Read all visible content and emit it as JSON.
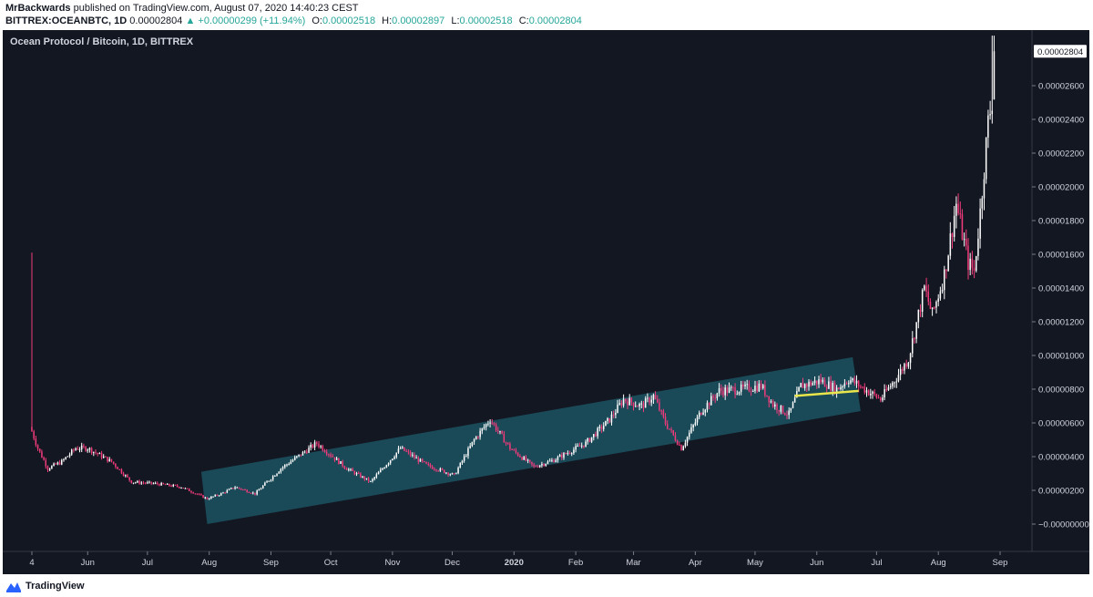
{
  "header": {
    "author": "MrBackwards",
    "published_text": " published on TradingView.com, August 07, 2020 14:40:23 CEST",
    "symbol": "BITTREX:OCEANBTC, 1D",
    "last": "0.00002804",
    "change": "▲ +0.00000299 (+11.94%)",
    "o_label": "O:",
    "o_value": "0.00002518",
    "h_label": "H:",
    "h_value": "0.00002897",
    "l_label": "L:",
    "l_value": "0.00002518",
    "c_label": "C:",
    "c_value": "0.00002804"
  },
  "footer": {
    "brand": "TradingView",
    "logo_icon": "tradingview-logo-icon"
  },
  "colors": {
    "background": "#131722",
    "up": "#ffffff",
    "down": "#f23b7b",
    "channel": "#1e5b6b",
    "support": "#e8e64a",
    "axis_text": "#d1d4dc",
    "last_label_bg": "#ffffff"
  },
  "chart_data": {
    "type": "candlestick",
    "title": "Ocean Protocol / Bitcoin, 1D, BITTREX",
    "x_ticks": [
      "4",
      "Jun",
      "Jul",
      "Aug",
      "Sep",
      "Oct",
      "Nov",
      "Dec",
      "2020",
      "Feb",
      "Mar",
      "Apr",
      "May",
      "Jun",
      "Jul",
      "Aug",
      "Sep"
    ],
    "y_ticks": [
      "0.00002600",
      "0.00002400",
      "0.00002200",
      "0.00002000",
      "0.00001800",
      "0.00001600",
      "0.00001400",
      "0.00001200",
      "0.00001000",
      "0.00000800",
      "0.00000600",
      "0.00000400",
      "0.00000200",
      "−0.00000000"
    ],
    "y_tick_values": [
      2.6e-05,
      2.4e-05,
      2.2e-05,
      2e-05,
      1.8e-05,
      1.6e-05,
      1.4e-05,
      1.2e-05,
      1e-05,
      8e-06,
      6e-06,
      4e-06,
      2e-06,
      0
    ],
    "ylim": [
      -7e-07,
      2.97e-05
    ],
    "last_price_label": "0.00002804",
    "last_price": 2.804e-05,
    "x_range_days": [
      0,
      500
    ],
    "tick_days": [
      0,
      28,
      58,
      89,
      120,
      150,
      181,
      211,
      242,
      273,
      302,
      333,
      363,
      394,
      424,
      455,
      486
    ],
    "close_keypoints": [
      [
        0,
        5.5e-06
      ],
      [
        3,
        4.5e-06
      ],
      [
        8,
        3.3e-06
      ],
      [
        15,
        3.7e-06
      ],
      [
        22,
        4.5e-06
      ],
      [
        28,
        4.5e-06
      ],
      [
        40,
        3.7e-06
      ],
      [
        50,
        2.5e-06
      ],
      [
        62,
        2.4e-06
      ],
      [
        75,
        2.2e-06
      ],
      [
        88,
        1.5e-06
      ],
      [
        95,
        1.8e-06
      ],
      [
        102,
        2.2e-06
      ],
      [
        112,
        1.8e-06
      ],
      [
        125,
        3.3e-06
      ],
      [
        143,
        4.8e-06
      ],
      [
        158,
        3.3e-06
      ],
      [
        170,
        2.5e-06
      ],
      [
        185,
        4.5e-06
      ],
      [
        198,
        3.5e-06
      ],
      [
        212,
        2.9e-06
      ],
      [
        222,
        5e-06
      ],
      [
        230,
        6.2e-06
      ],
      [
        240,
        4.5e-06
      ],
      [
        252,
        3.4e-06
      ],
      [
        262,
        3.8e-06
      ],
      [
        278,
        4.8e-06
      ],
      [
        290,
        6.2e-06
      ],
      [
        297,
        7.4e-06
      ],
      [
        306,
        7e-06
      ],
      [
        312,
        7.6e-06
      ],
      [
        318,
        6e-06
      ],
      [
        326,
        4.5e-06
      ],
      [
        336,
        6.7e-06
      ],
      [
        345,
        7.9e-06
      ],
      [
        356,
        8e-06
      ],
      [
        366,
        8.2e-06
      ],
      [
        372,
        7.1e-06
      ],
      [
        380,
        6.5e-06
      ],
      [
        386,
        8.2e-06
      ],
      [
        396,
        8.5e-06
      ],
      [
        404,
        8e-06
      ],
      [
        410,
        8.6e-06
      ],
      [
        418,
        8e-06
      ],
      [
        426,
        7.4e-06
      ],
      [
        434,
        8.7e-06
      ],
      [
        440,
        9.8e-06
      ],
      [
        448,
        1.4e-05
      ],
      [
        452,
        1.24e-05
      ],
      [
        458,
        1.48e-05
      ],
      [
        464,
        1.9e-05
      ],
      [
        470,
        1.55e-05
      ],
      [
        473,
        1.5e-05
      ],
      [
        476,
        1.85e-05
      ],
      [
        480,
        2.38e-05
      ],
      [
        482,
        2.52e-05
      ],
      [
        483,
        2.804e-05
      ]
    ],
    "spikes": [
      {
        "day": 0,
        "value": 1.61e-05
      },
      {
        "day": 482,
        "value": 2.897e-05
      }
    ],
    "channel": {
      "lower_start": [
        88,
        0.0
      ],
      "lower_end": [
        416,
        6.7e-06
      ],
      "upper_start": [
        85,
        3.1e-06
      ],
      "upper_end": [
        412,
        9.9e-06
      ]
    },
    "support_line": {
      "start": [
        383,
        7.6e-06
      ],
      "end": [
        415,
        7.9e-06
      ]
    }
  }
}
